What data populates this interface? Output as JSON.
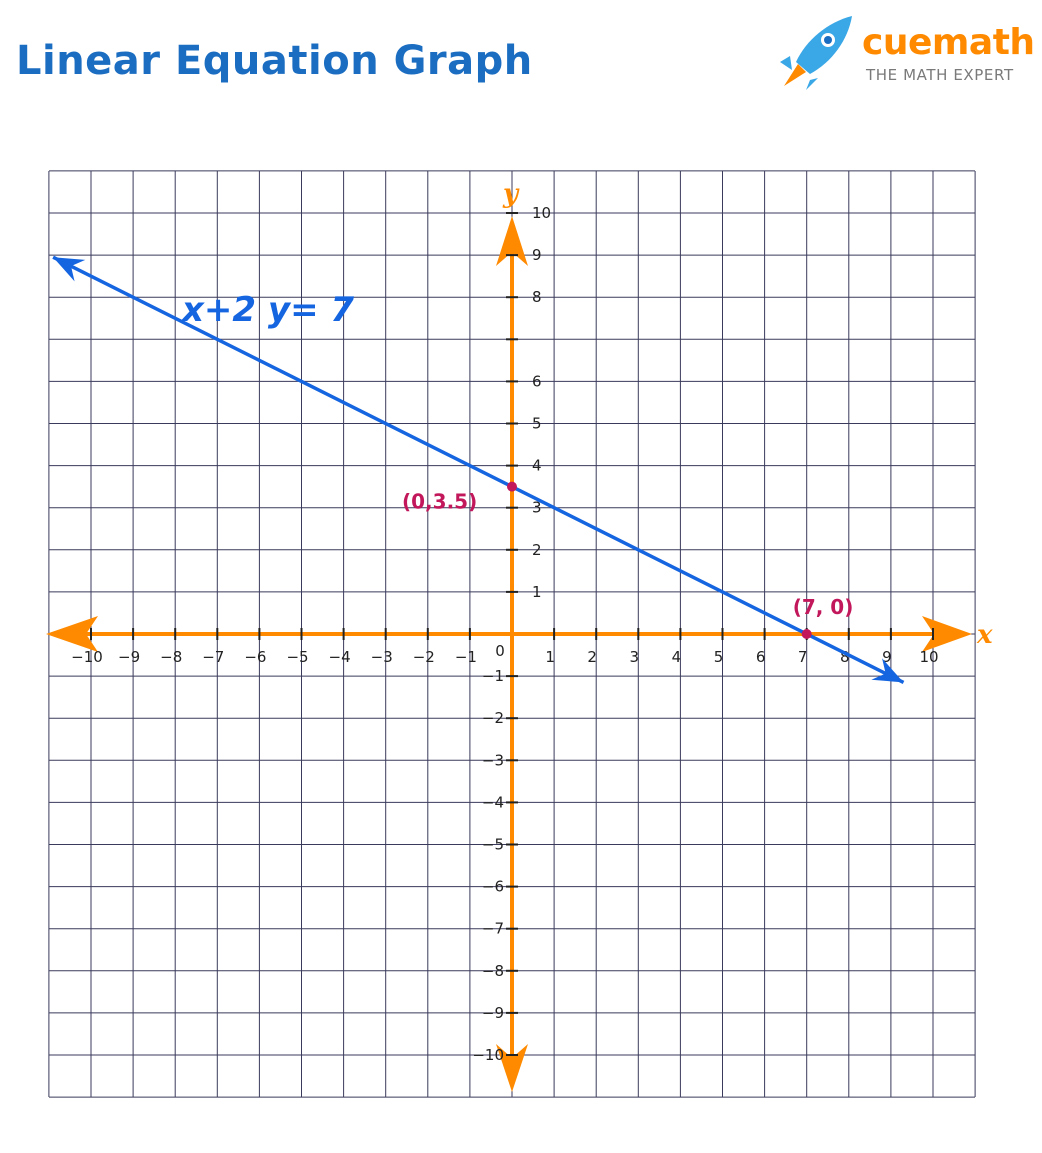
{
  "page": {
    "title": "Linear Equation Graph"
  },
  "brand": {
    "name": "cuemath",
    "tagline": "THE MATH EXPERT",
    "icon": "rocket-icon"
  },
  "colors": {
    "title": "#1b6dc1",
    "grid": "#3a3a5c",
    "axis": "#ff8a00",
    "line": "#1565e0",
    "points": "#c2185b",
    "brand": "#ff8a00",
    "rocket": "#3aa7e6"
  },
  "chart_data": {
    "type": "line",
    "title": "Linear Equation Graph",
    "xlabel": "x",
    "ylabel": "y",
    "xlim": [
      -11,
      11
    ],
    "ylim": [
      -11,
      11
    ],
    "grid": true,
    "x_ticks": [
      "−10",
      "−9",
      "−8",
      "−7",
      "−6",
      "−5",
      "−4",
      "−3",
      "−2",
      "−1",
      "0",
      "1",
      "2",
      "3",
      "4",
      "5",
      "6",
      "7",
      "8",
      "9",
      "10"
    ],
    "y_ticks": [
      "10",
      "9",
      "8",
      "6",
      "5",
      "4",
      "3",
      "2",
      "1",
      "−1",
      "−2",
      "−3",
      "−4",
      "−5",
      "−6",
      "−7",
      "−8",
      "−9",
      "−10"
    ],
    "equation_label": "x+2 y= 7",
    "series": [
      {
        "name": "x+2 y= 7",
        "x": [
          -10.9,
          9.3
        ],
        "y": [
          8.95,
          -1.15
        ]
      }
    ],
    "points": [
      {
        "x": 0,
        "y": 3.5,
        "label": "(0,3.5)"
      },
      {
        "x": 7,
        "y": 0,
        "label": "(7, 0)"
      }
    ]
  }
}
